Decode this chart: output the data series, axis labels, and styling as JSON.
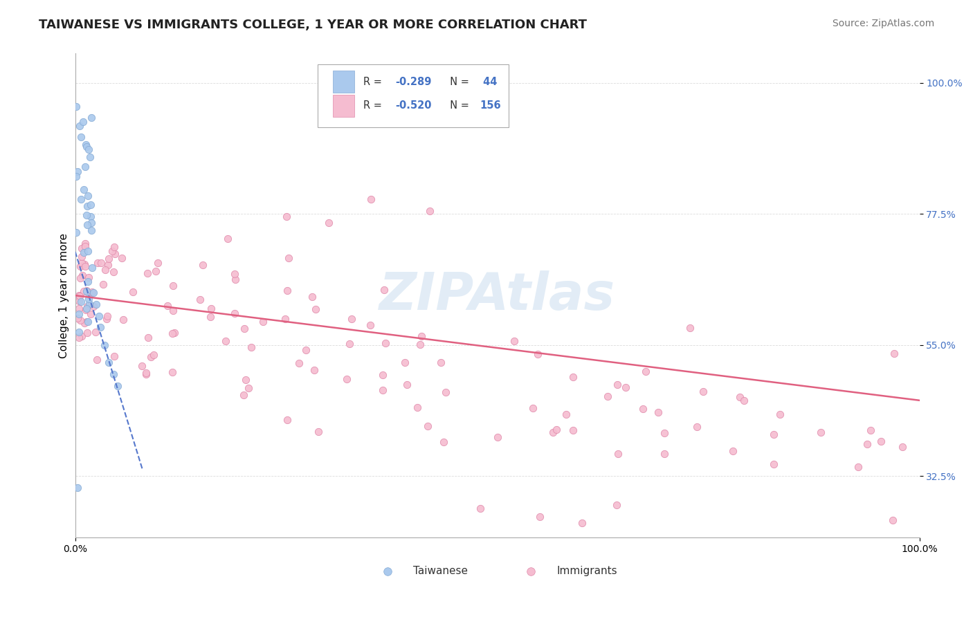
{
  "title": "TAIWANESE VS IMMIGRANTS COLLEGE, 1 YEAR OR MORE CORRELATION CHART",
  "source_text": "Source: ZipAtlas.com",
  "ylabel": "College, 1 year or more",
  "xlim": [
    0.0,
    1.0
  ],
  "ylim": [
    0.22,
    1.05
  ],
  "ytick_labels": [
    "32.5%",
    "55.0%",
    "77.5%",
    "100.0%"
  ],
  "ytick_values": [
    0.325,
    0.55,
    0.775,
    1.0
  ],
  "xtick_labels": [
    "0.0%",
    "100.0%"
  ],
  "watermark": "ZIPAtlas",
  "r_tw": -0.289,
  "n_tw": 44,
  "r_im": -0.52,
  "n_im": 156,
  "taiwanese_color": "#aac9ed",
  "immigrants_color": "#f5bcd0",
  "taiwanese_edge_color": "#85aad4",
  "immigrants_edge_color": "#e08aaa",
  "background_color": "#ffffff",
  "grid_color": "#cccccc",
  "watermark_color": "#cfe0f0",
  "watermark_fontsize": 54,
  "title_fontsize": 13,
  "ylabel_fontsize": 11,
  "source_fontsize": 10,
  "legend_R_color": "#4472c4",
  "ytick_color": "#4472c4",
  "tw_line_color": "#5577cc",
  "im_line_color": "#e06080",
  "tw_line_x": [
    0.0,
    0.08
  ],
  "tw_line_y": [
    0.71,
    0.335
  ],
  "im_line_x": [
    0.0,
    1.0
  ],
  "im_line_y": [
    0.635,
    0.455
  ],
  "dot_size": 55
}
